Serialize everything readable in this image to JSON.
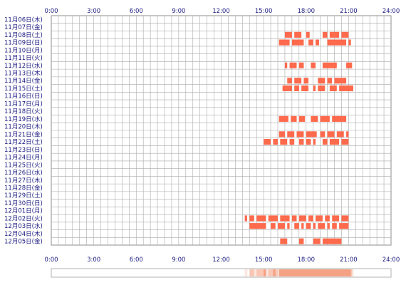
{
  "chart_data": {
    "type": "heatmap",
    "title": "",
    "xlabel": "",
    "ylabel": "",
    "x_ticks": [
      "0:00",
      "3:00",
      "6:00",
      "9:00",
      "12:00",
      "15:00",
      "18:00",
      "21:00",
      "24:00"
    ],
    "xlim": [
      "0:00",
      "24:00"
    ],
    "grid": true,
    "bar_color": "#ff6a4d",
    "grid_color": "#a9a9a9",
    "label_color": "#1a1a80",
    "rows": [
      {
        "label": "11月06日(木)",
        "intervals": []
      },
      {
        "label": "11月07日(金)",
        "intervals": []
      },
      {
        "label": "11月08日(土)",
        "intervals": [
          [
            "16:30",
            "17:00"
          ],
          [
            "17:10",
            "17:40"
          ],
          [
            "18:00",
            "18:15"
          ],
          [
            "19:10",
            "19:30"
          ],
          [
            "19:40",
            "20:20"
          ],
          [
            "20:30",
            "21:00"
          ]
        ]
      },
      {
        "label": "11月09日(日)",
        "intervals": [
          [
            "16:05",
            "16:50"
          ],
          [
            "17:00",
            "17:50"
          ],
          [
            "18:10",
            "18:30"
          ],
          [
            "18:40",
            "18:55"
          ],
          [
            "19:30",
            "20:50"
          ],
          [
            "21:00",
            "21:10"
          ]
        ]
      },
      {
        "label": "11月10日(月)",
        "intervals": []
      },
      {
        "label": "11月11日(火)",
        "intervals": []
      },
      {
        "label": "11月12日(水)",
        "intervals": [
          [
            "16:30",
            "16:40"
          ],
          [
            "16:50",
            "17:20"
          ],
          [
            "17:30",
            "17:50"
          ],
          [
            "18:20",
            "18:40"
          ],
          [
            "19:10",
            "20:10"
          ],
          [
            "20:50",
            "21:15"
          ]
        ]
      },
      {
        "label": "11月13日(木)",
        "intervals": []
      },
      {
        "label": "11月14日(金)",
        "intervals": [
          [
            "16:40",
            "17:00"
          ],
          [
            "17:10",
            "17:40"
          ],
          [
            "17:50",
            "18:10"
          ],
          [
            "18:50",
            "19:20"
          ],
          [
            "19:30",
            "19:50"
          ],
          [
            "20:00",
            "20:50"
          ]
        ]
      },
      {
        "label": "11月15日(土)",
        "intervals": [
          [
            "16:20",
            "17:00"
          ],
          [
            "17:10",
            "17:30"
          ],
          [
            "17:40",
            "18:10"
          ],
          [
            "18:30",
            "18:40"
          ],
          [
            "18:50",
            "19:20"
          ],
          [
            "19:40",
            "20:10"
          ],
          [
            "20:20",
            "21:20"
          ]
        ]
      },
      {
        "label": "11月16日(日)",
        "intervals": []
      },
      {
        "label": "11月17日(月)",
        "intervals": []
      },
      {
        "label": "11月18日(火)",
        "intervals": []
      },
      {
        "label": "11月19日(水)",
        "intervals": [
          [
            "16:05",
            "16:45"
          ],
          [
            "16:55",
            "17:20"
          ],
          [
            "17:30",
            "17:55"
          ],
          [
            "18:20",
            "18:50"
          ],
          [
            "19:00",
            "19:40"
          ],
          [
            "19:50",
            "20:50"
          ]
        ]
      },
      {
        "label": "11月20日(木)",
        "intervals": []
      },
      {
        "label": "11月21日(金)",
        "intervals": [
          [
            "16:05",
            "16:30"
          ],
          [
            "16:40",
            "17:10"
          ],
          [
            "17:20",
            "17:50"
          ],
          [
            "18:00",
            "18:45"
          ],
          [
            "19:00",
            "19:20"
          ],
          [
            "19:30",
            "20:00"
          ],
          [
            "20:10",
            "20:40"
          ],
          [
            "20:50",
            "21:00"
          ]
        ]
      },
      {
        "label": "11月22日(土)",
        "intervals": [
          [
            "15:00",
            "15:30"
          ],
          [
            "15:40",
            "16:00"
          ],
          [
            "16:10",
            "16:40"
          ],
          [
            "16:50",
            "17:10"
          ],
          [
            "17:30",
            "17:50"
          ],
          [
            "18:00",
            "18:20"
          ],
          [
            "18:30",
            "18:40"
          ],
          [
            "19:10",
            "19:30"
          ],
          [
            "19:40",
            "20:20"
          ],
          [
            "20:30",
            "21:00"
          ]
        ]
      },
      {
        "label": "11月23日(日)",
        "intervals": []
      },
      {
        "label": "11月24日(月)",
        "intervals": []
      },
      {
        "label": "11月25日(火)",
        "intervals": []
      },
      {
        "label": "11月26日(水)",
        "intervals": []
      },
      {
        "label": "11月27日(木)",
        "intervals": []
      },
      {
        "label": "11月28日(金)",
        "intervals": []
      },
      {
        "label": "11月29日(土)",
        "intervals": []
      },
      {
        "label": "11月30日(日)",
        "intervals": []
      },
      {
        "label": "12月01日(月)",
        "intervals": []
      },
      {
        "label": "12月02日(火)",
        "intervals": [
          [
            "13:40",
            "13:50"
          ],
          [
            "14:00",
            "14:20"
          ],
          [
            "14:30",
            "15:10"
          ],
          [
            "15:20",
            "16:00"
          ],
          [
            "16:10",
            "16:50"
          ],
          [
            "17:00",
            "17:20"
          ],
          [
            "17:30",
            "18:00"
          ],
          [
            "18:10",
            "18:30"
          ],
          [
            "18:40",
            "19:10"
          ],
          [
            "19:20",
            "19:40"
          ],
          [
            "19:50",
            "20:20"
          ],
          [
            "20:30",
            "21:00"
          ]
        ]
      },
      {
        "label": "12月03日(水)",
        "intervals": [
          [
            "14:00",
            "15:10"
          ],
          [
            "15:30",
            "15:50"
          ],
          [
            "16:00",
            "16:30"
          ],
          [
            "16:40",
            "16:50"
          ],
          [
            "17:10",
            "17:30"
          ],
          [
            "17:40",
            "17:50"
          ],
          [
            "18:00",
            "18:20"
          ],
          [
            "18:30",
            "18:40"
          ],
          [
            "18:50",
            "19:20"
          ],
          [
            "19:30",
            "19:40"
          ],
          [
            "19:50",
            "20:10"
          ],
          [
            "20:20",
            "21:00"
          ]
        ]
      },
      {
        "label": "12月04日(木)",
        "intervals": []
      },
      {
        "label": "12月05日(金)",
        "intervals": [
          [
            "16:10",
            "16:40"
          ],
          [
            "17:30",
            "17:50"
          ],
          [
            "18:30",
            "19:00"
          ],
          [
            "19:10",
            "20:30"
          ]
        ]
      }
    ],
    "activity_strip": {
      "range": [
        "13:30",
        "21:30"
      ],
      "colors": [
        "#ffffff",
        "#fce6dd",
        "#f9c7b4",
        "#f4a184"
      ]
    }
  }
}
